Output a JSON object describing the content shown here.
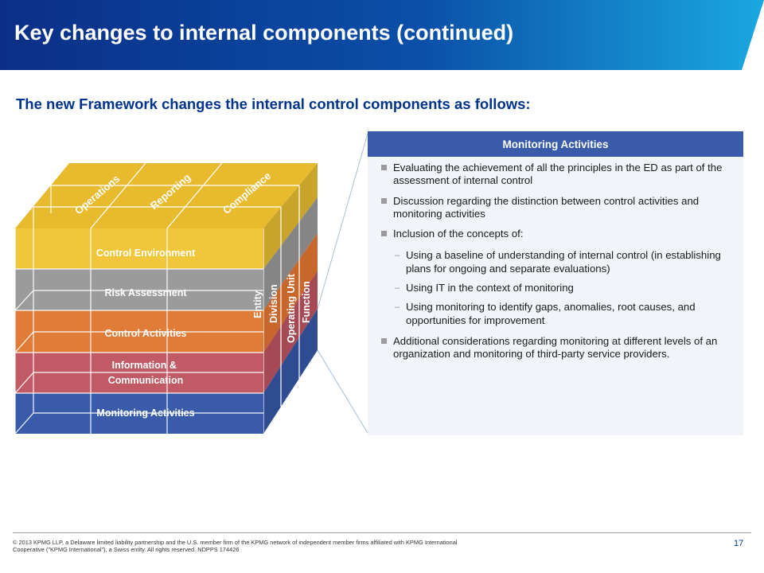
{
  "header": {
    "title": "Key changes to internal components (continued)",
    "colors": {
      "dark": "#0b2f87",
      "light": "#1aa8df"
    }
  },
  "subtitle": "The new Framework changes the internal control components as follows:",
  "cube": {
    "objectives": [
      "Operations",
      "Reporting",
      "Compliance"
    ],
    "components": [
      {
        "label": "Control Environment",
        "color": "#f0c63b"
      },
      {
        "label": "Risk Assessment",
        "color": "#9b9b9b"
      },
      {
        "label": "Control Activities",
        "color": "#e07c38"
      },
      {
        "label": "Information & Communication",
        "color": "#c05a65"
      },
      {
        "label": "Monitoring Activities",
        "color": "#3a5ba9"
      }
    ],
    "structure": [
      "Entity",
      "Division",
      "Operating Unit",
      "Function"
    ]
  },
  "panel": {
    "header": "Monitoring Activities",
    "bullets": [
      {
        "text": "Evaluating the achievement of all the principles in the ED as part of the assessment of internal control"
      },
      {
        "text": "Discussion regarding the distinction between control activities and monitoring activities"
      },
      {
        "text": "Inclusion of the concepts of:"
      },
      {
        "text": "Additional considerations regarding monitoring at different levels of an organization and monitoring of third-party service providers."
      }
    ],
    "sub_bullets": [
      "Using a baseline of understanding of internal control (in establishing plans for ongoing and separate evaluations)",
      "Using IT in the context of monitoring",
      "Using monitoring to identify gaps, anomalies, root causes, and opportunities for improvement"
    ]
  },
  "footer": {
    "copyright": "© 2013 KPMG LLP, a Delaware limited liability partnership and the U.S. member firm of the KPMG network of independent member firms affiliated with KPMG International Cooperative (\"KPMG International\"), a Swiss entity. All rights reserved. NDPPS 174426",
    "page_number": "17"
  }
}
